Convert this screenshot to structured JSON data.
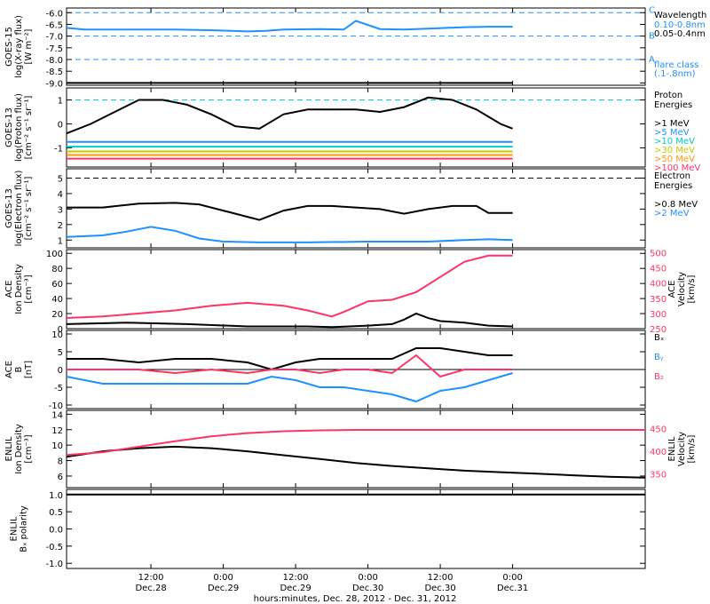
{
  "chart_data": {
    "type": "line",
    "time": {
      "x_range_hours": [
        0,
        96
      ],
      "ticks": [
        {
          "hour": 14,
          "label": "12:00",
          "sub": "Dec.28"
        },
        {
          "hour": 26,
          "label": "0:00",
          "sub": "Dec.29"
        },
        {
          "hour": 38,
          "label": "12:00",
          "sub": "Dec.29"
        },
        {
          "hour": 50,
          "label": "0:00",
          "sub": "Dec.30"
        },
        {
          "hour": 62,
          "label": "12:00",
          "sub": "Dec.30"
        },
        {
          "hour": 74,
          "label": "0:00",
          "sub": "Dec.31"
        }
      ],
      "xlabel": "hours:minutes, Dec. 28, 2012 - Dec. 31, 2012"
    },
    "panels": [
      {
        "id": "xray",
        "ylabel": [
          "GOES-15",
          "log(X-ray flux)",
          "[W m⁻²]"
        ],
        "ylim": [
          -9.1,
          -5.8
        ],
        "yticks": [
          "-6.0",
          "-6.5",
          "-7.0",
          "-7.5",
          "-8.0",
          "-8.5",
          "-9.0"
        ],
        "ytick_values": [
          -6.0,
          -6.5,
          -7.0,
          -7.5,
          -8.0,
          -8.5,
          -9.0
        ],
        "reference_lines": [
          {
            "value": -6.0,
            "label": "C",
            "color": "#1e90ff"
          },
          {
            "value": -7.0,
            "label": "B",
            "color": "#1e90ff"
          },
          {
            "value": -8.0,
            "label": "A",
            "color": "#1e90ff"
          }
        ],
        "legend_title": "Wavelength",
        "legend": [
          {
            "label": "0.10-0.8nm",
            "color": "#1e90ff"
          },
          {
            "label": "0.05-0.4nm",
            "color": "#000000"
          }
        ],
        "note": [
          "flare class",
          "(.1-.8nm)"
        ],
        "series": [
          {
            "name": "0.10-0.8nm",
            "color": "#1e90ff",
            "x": [
              0,
              3,
              6,
              12,
              18,
              24,
              30,
              33,
              36,
              42,
              46,
              48,
              52,
              56,
              60,
              66,
              70,
              74
            ],
            "y": [
              -6.65,
              -6.72,
              -6.72,
              -6.72,
              -6.72,
              -6.75,
              -6.8,
              -6.78,
              -6.72,
              -6.7,
              -6.72,
              -6.35,
              -6.7,
              -6.72,
              -6.68,
              -6.62,
              -6.6,
              -6.6
            ]
          },
          {
            "name": "0.05-0.4nm",
            "color": "#000000",
            "x": [
              0,
              74
            ],
            "y": [
              -9.0,
              -9.0
            ]
          }
        ]
      },
      {
        "id": "proton",
        "ylabel": [
          "GOES-13",
          "log(Proton flux)",
          "[cm⁻² s⁻¹ sr⁻¹]"
        ],
        "ylim": [
          -1.8,
          1.5
        ],
        "yticks": [
          "1",
          "0",
          "-1"
        ],
        "ytick_values": [
          1,
          0,
          -1
        ],
        "reference_lines": [
          {
            "value": 1.0,
            "color": "#00cccc"
          }
        ],
        "legend_title": [
          "Proton",
          "Energies"
        ],
        "legend": [
          {
            "label": ">1 MeV",
            "color": "#000000"
          },
          {
            "label": ">5 MeV",
            "color": "#1e90ff"
          },
          {
            "label": ">10 MeV",
            "color": "#00cccc"
          },
          {
            "label": ">30 MeV",
            "color": "#c8c800"
          },
          {
            "label": ">50 MeV",
            "color": "#ff9900"
          },
          {
            "label": ">100 MeV",
            "color": "#ff3366"
          }
        ],
        "series": [
          {
            "name": ">1 MeV",
            "color": "#000000",
            "x": [
              0,
              4,
              8,
              12,
              16,
              20,
              24,
              28,
              32,
              36,
              40,
              44,
              48,
              52,
              56,
              60,
              64,
              68,
              72,
              74
            ],
            "y": [
              -0.4,
              0.0,
              0.5,
              1.0,
              1.0,
              0.8,
              0.4,
              -0.1,
              -0.2,
              0.4,
              0.6,
              0.6,
              0.6,
              0.5,
              0.7,
              1.1,
              1.0,
              0.6,
              0.0,
              -0.2
            ]
          },
          {
            "name": ">5 MeV",
            "color": "#1e90ff",
            "x": [
              0,
              74
            ],
            "y": [
              -0.75,
              -0.75
            ]
          },
          {
            "name": ">10 MeV",
            "color": "#00cccc",
            "x": [
              0,
              74
            ],
            "y": [
              -0.95,
              -0.95
            ]
          },
          {
            "name": ">30 MeV",
            "color": "#c8c800",
            "x": [
              0,
              74
            ],
            "y": [
              -1.15,
              -1.15
            ]
          },
          {
            "name": ">50 MeV",
            "color": "#ff9900",
            "x": [
              0,
              74
            ],
            "y": [
              -1.3,
              -1.3
            ]
          },
          {
            "name": ">100 MeV",
            "color": "#ff3366",
            "x": [
              0,
              74
            ],
            "y": [
              -1.45,
              -1.45
            ]
          }
        ]
      },
      {
        "id": "electron",
        "ylabel": [
          "GOES-13",
          "log(Electron flux)",
          "[cm⁻² s⁻¹ sr⁻¹]"
        ],
        "ylim": [
          0.5,
          5.6
        ],
        "yticks": [
          "5",
          "4",
          "3",
          "2",
          "1"
        ],
        "ytick_values": [
          5,
          4,
          3,
          2,
          1
        ],
        "reference_lines": [
          {
            "value": 5.0,
            "color": "#000000"
          }
        ],
        "legend_title": [
          "Electron",
          "Energies"
        ],
        "legend": [
          {
            "label": ">0.8 MeV",
            "color": "#000000"
          },
          {
            "label": ">2 MeV",
            "color": "#1e90ff"
          }
        ],
        "series": [
          {
            "name": ">0.8 MeV",
            "color": "#000000",
            "x": [
              0,
              6,
              12,
              18,
              22,
              26,
              30,
              32,
              36,
              40,
              44,
              48,
              52,
              56,
              60,
              64,
              68,
              70,
              74
            ],
            "y": [
              3.1,
              3.1,
              3.35,
              3.4,
              3.3,
              2.9,
              2.5,
              2.3,
              2.9,
              3.2,
              3.2,
              3.1,
              3.0,
              2.7,
              3.0,
              3.2,
              3.2,
              2.75,
              2.75
            ]
          },
          {
            "name": ">2 MeV",
            "color": "#1e90ff",
            "x": [
              0,
              6,
              10,
              14,
              18,
              22,
              26,
              32,
              40,
              50,
              60,
              66,
              70,
              74
            ],
            "y": [
              1.2,
              1.3,
              1.55,
              1.85,
              1.6,
              1.1,
              0.9,
              0.85,
              0.85,
              0.9,
              0.9,
              1.0,
              1.05,
              1.0
            ]
          }
        ]
      },
      {
        "id": "ace_density",
        "ylabel": [
          "ACE",
          "Ion Density",
          "[cm⁻³]"
        ],
        "ylim": [
          0,
          105
        ],
        "yticks": [
          "100",
          "80",
          "60",
          "40",
          "20",
          "0"
        ],
        "ytick_values": [
          100,
          80,
          60,
          40,
          20,
          0
        ],
        "right_label": [
          "ACE",
          "Velocity",
          "[km/s]"
        ],
        "right_ylim": [
          250,
          510
        ],
        "right_yticks": [
          "500",
          "450",
          "400",
          "350",
          "300",
          "250"
        ],
        "right_ytick_values": [
          500,
          450,
          400,
          350,
          300,
          250
        ],
        "series": [
          {
            "name": "Ion Density",
            "color": "#000000",
            "axis": "left",
            "x": [
              0,
              10,
              20,
              30,
              40,
              44,
              50,
              54,
              56,
              58,
              60,
              62,
              66,
              70,
              74
            ],
            "y": [
              6,
              8,
              6,
              3,
              3,
              2,
              4,
              6,
              12,
              20,
              14,
              10,
              8,
              4,
              3
            ]
          },
          {
            "name": "Velocity",
            "color": "#ff3366",
            "axis": "right",
            "x": [
              0,
              6,
              12,
              18,
              24,
              30,
              36,
              40,
              44,
              46,
              50,
              54,
              58,
              62,
              66,
              70,
              74
            ],
            "y": [
              285,
              290,
              300,
              310,
              325,
              335,
              325,
              310,
              290,
              305,
              340,
              345,
              370,
              420,
              470,
              490,
              490
            ]
          }
        ]
      },
      {
        "id": "ace_field",
        "ylabel": [
          "ACE",
          "B",
          "[nT]"
        ],
        "ylim": [
          -11,
          11
        ],
        "yticks": [
          "10",
          "5",
          "0",
          "-5",
          "-10"
        ],
        "ytick_values": [
          10,
          5,
          0,
          -5,
          -10
        ],
        "zero_line": true,
        "legend": [
          {
            "label": "Bₓ",
            "color": "#000000"
          },
          {
            "label": "Bᵧ",
            "color": "#1e90ff"
          },
          {
            "label": "B₂",
            "color": "#ff3366"
          }
        ],
        "series": [
          {
            "name": "Bx",
            "color": "#000000",
            "x": [
              0,
              6,
              12,
              18,
              24,
              30,
              34,
              38,
              42,
              46,
              50,
              54,
              58,
              62,
              66,
              70,
              74
            ],
            "y": [
              3,
              3,
              2,
              3,
              3,
              2,
              0,
              2,
              3,
              3,
              3,
              3,
              6,
              6,
              5,
              4,
              4
            ]
          },
          {
            "name": "By",
            "color": "#1e90ff",
            "x": [
              0,
              6,
              12,
              18,
              24,
              30,
              34,
              38,
              42,
              46,
              50,
              54,
              58,
              62,
              66,
              70,
              74
            ],
            "y": [
              -2,
              -4,
              -4,
              -4,
              -4,
              -4,
              -2,
              -3,
              -5,
              -5,
              -6,
              -7,
              -9,
              -6,
              -5,
              -3,
              -1
            ]
          },
          {
            "name": "Bz",
            "color": "#ff3366",
            "x": [
              0,
              6,
              12,
              18,
              24,
              30,
              34,
              38,
              42,
              46,
              50,
              54,
              58,
              62,
              66,
              70,
              74
            ],
            "y": [
              0,
              0,
              0,
              -1,
              0,
              -1,
              0,
              0,
              -1,
              0,
              0,
              -1,
              4,
              -2,
              0,
              0,
              0
            ]
          }
        ]
      },
      {
        "id": "enlil_density",
        "ylabel": [
          "ENLIL",
          "Ion Density",
          "[cm⁻³]"
        ],
        "ylim": [
          4.5,
          14.5
        ],
        "yticks": [
          "14",
          "12",
          "10",
          "8",
          "6"
        ],
        "ytick_values": [
          14,
          12,
          10,
          8,
          6
        ],
        "right_label": [
          "ENLIL",
          "Velocity",
          "[km/s]"
        ],
        "right_ylim": [
          320,
          490
        ],
        "right_yticks": [
          "450",
          "400",
          "350"
        ],
        "right_ytick_values": [
          450,
          400,
          350
        ],
        "series": [
          {
            "name": "Ion Density",
            "color": "#000000",
            "axis": "left",
            "x": [
              0,
              6,
              12,
              18,
              24,
              30,
              36,
              42,
              48,
              54,
              60,
              66,
              72,
              78,
              84,
              90,
              96
            ],
            "y": [
              8.5,
              9.2,
              9.6,
              9.8,
              9.6,
              9.2,
              8.7,
              8.2,
              7.7,
              7.3,
              7.0,
              6.7,
              6.5,
              6.3,
              6.1,
              5.9,
              5.8
            ]
          },
          {
            "name": "Velocity",
            "color": "#ff3366",
            "axis": "right",
            "x": [
              0,
              6,
              12,
              18,
              24,
              30,
              36,
              42,
              48,
              54,
              96
            ],
            "y": [
              392,
              398,
              410,
              422,
              433,
              440,
              444,
              446,
              447,
              447,
              447
            ]
          }
        ]
      },
      {
        "id": "enlil_polarity",
        "ylabel": [
          "ENLIL",
          "Bₓ polarity"
        ],
        "ylim": [
          -1.15,
          1.15
        ],
        "yticks": [
          "1.0",
          "0.5",
          "0.0",
          "-0.5",
          "-1.0"
        ],
        "ytick_values": [
          1.0,
          0.5,
          0.0,
          -0.5,
          -1.0
        ],
        "series": [
          {
            "name": "Bx polarity",
            "color": "#000000",
            "x": [
              0,
              96
            ],
            "y": [
              1.0,
              1.0
            ]
          }
        ]
      }
    ]
  }
}
